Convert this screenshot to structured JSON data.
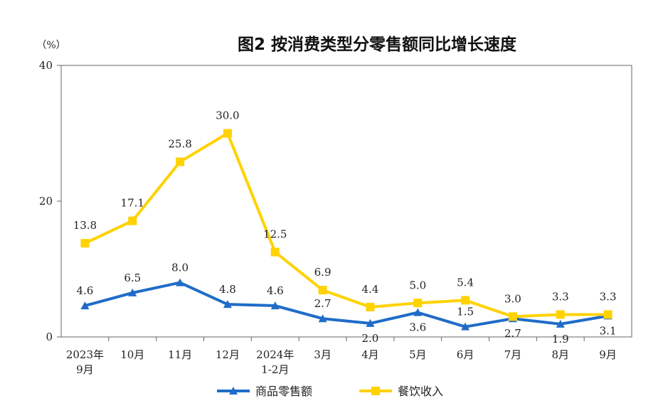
{
  "chart_data": {
    "type": "line",
    "title": "图2  按消费类型分零售额同比增长速度",
    "unit": "（%）",
    "ylim": [
      0,
      40
    ],
    "yticks": [
      0,
      20,
      40
    ],
    "categories": [
      [
        "2023年",
        "9月"
      ],
      [
        "10月"
      ],
      [
        "11月"
      ],
      [
        "12月"
      ],
      [
        "2024年",
        "1-2月"
      ],
      [
        "3月"
      ],
      [
        "4月"
      ],
      [
        "5月"
      ],
      [
        "6月"
      ],
      [
        "7月"
      ],
      [
        "8月"
      ],
      [
        "9月"
      ]
    ],
    "series": [
      {
        "name": "商品零售额",
        "color": "#1f6cc8",
        "marker": "triangle",
        "values": [
          4.6,
          6.5,
          8.0,
          4.8,
          4.6,
          2.7,
          2.0,
          3.6,
          1.5,
          2.7,
          1.9,
          3.1
        ],
        "labels": [
          "4.6",
          "6.5",
          "8.0",
          "4.8",
          "4.6",
          "2.7",
          "2.0",
          "3.6",
          "1.5",
          "2.7",
          "1.9",
          "3.1"
        ]
      },
      {
        "name": "餐饮收入",
        "color": "#ffd200",
        "marker": "square",
        "values": [
          13.8,
          17.1,
          25.8,
          30.0,
          12.5,
          6.9,
          4.4,
          5.0,
          5.4,
          3.0,
          3.3,
          3.3
        ],
        "labels": [
          "13.8",
          "17.1",
          "25.8",
          "30.0",
          "12.5",
          "6.9",
          "4.4",
          "5.0",
          "5.4",
          "3.0",
          "3.3",
          "3.3"
        ]
      }
    ],
    "legend": "bottom-center"
  }
}
